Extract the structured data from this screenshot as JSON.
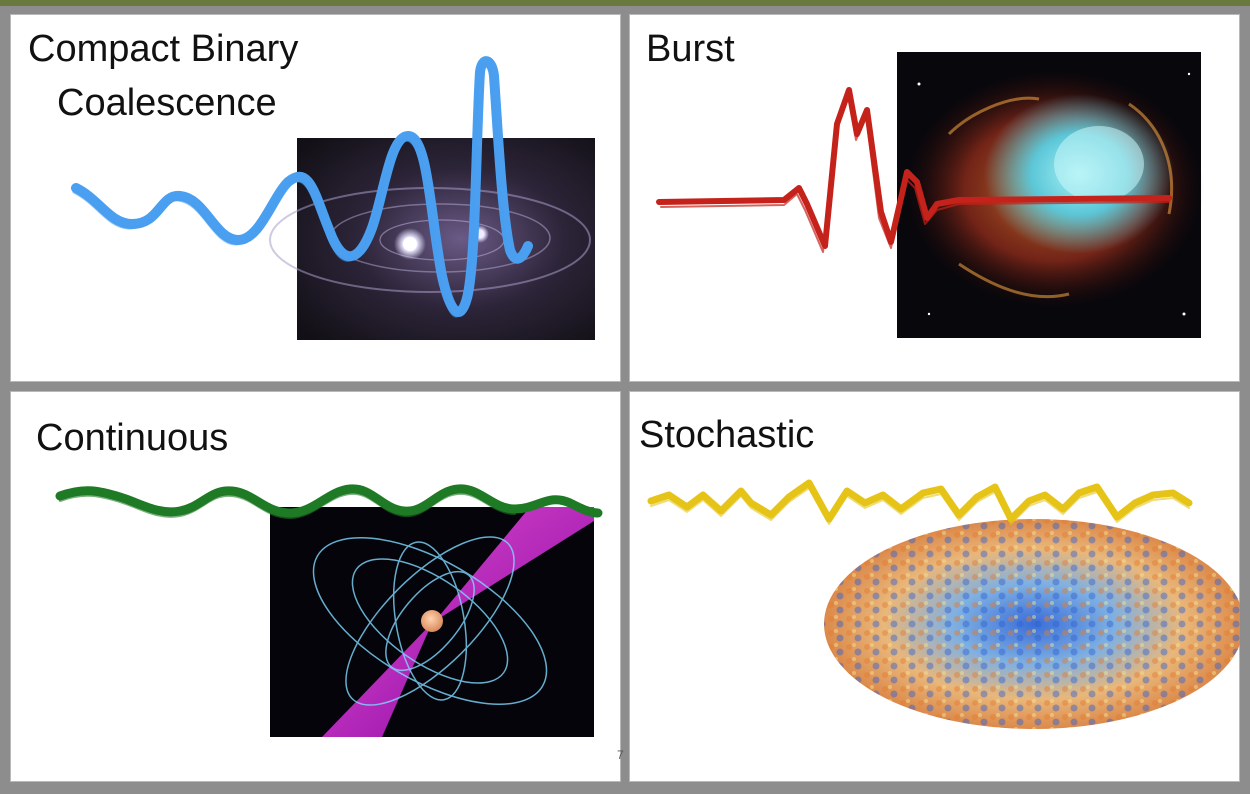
{
  "panels": {
    "cbc": {
      "title_line1": "Compact Binary",
      "title_line2": "Coalescence",
      "waveform_color": "#4a9ff0"
    },
    "burst": {
      "title": "Burst",
      "waveform_color": "#c4221a"
    },
    "continuous": {
      "title": "Continuous",
      "waveform_color": "#1f7a25"
    },
    "stochastic": {
      "title": "Stochastic",
      "waveform_color": "#e6c417"
    }
  },
  "images": {
    "cbc": "binary-star-orbit-image",
    "burst": "supernova-remnant-nebula-image",
    "continuous": "pulsar-magnetosphere-image",
    "stochastic": "cosmic-background-sky-map-image"
  },
  "stray_mark": "7"
}
